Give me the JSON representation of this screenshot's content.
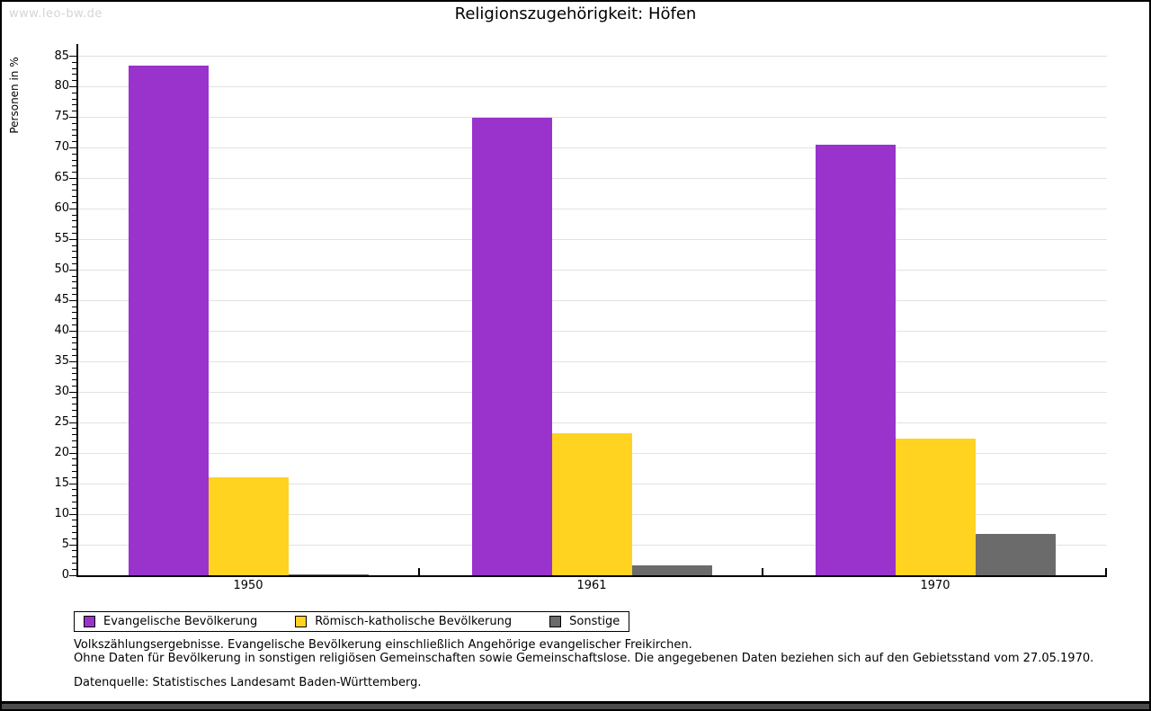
{
  "page": {
    "watermark": "www.leo-bw.de",
    "title": "Religionszugehörigkeit: Höfen"
  },
  "chart_data": {
    "type": "bar",
    "title": "Religionszugehörigkeit: Höfen",
    "xlabel": "",
    "ylabel": "Personen in %",
    "ylim": [
      0,
      85
    ],
    "ytick_step": 5,
    "grid": true,
    "legend_position": "bottom",
    "categories": [
      "1950",
      "1961",
      "1970"
    ],
    "series": [
      {
        "name": "Evangelische Bevölkerung",
        "color": "#9933CC",
        "values": [
          83.5,
          74.9,
          70.5
        ]
      },
      {
        "name": "Römisch-katholische Bevölkerung",
        "color": "#FFD320",
        "values": [
          16.0,
          23.3,
          22.4
        ]
      },
      {
        "name": "Sonstige",
        "color": "#6B6B6B",
        "values": [
          0.2,
          1.6,
          6.8
        ]
      }
    ]
  },
  "footnotes": {
    "line1": "Volkszählungsergebnisse. Evangelische Bevölkerung einschließlich Angehörige evangelischer Freikirchen.",
    "line2": "Ohne Daten für Bevölkerung in sonstigen religiösen Gemeinschaften sowie Gemeinschaftslose. Die angegebenen Daten beziehen sich auf den Gebietsstand vom 27.05.1970.",
    "source": "Datenquelle: Statistisches Landesamt Baden-Württemberg."
  }
}
